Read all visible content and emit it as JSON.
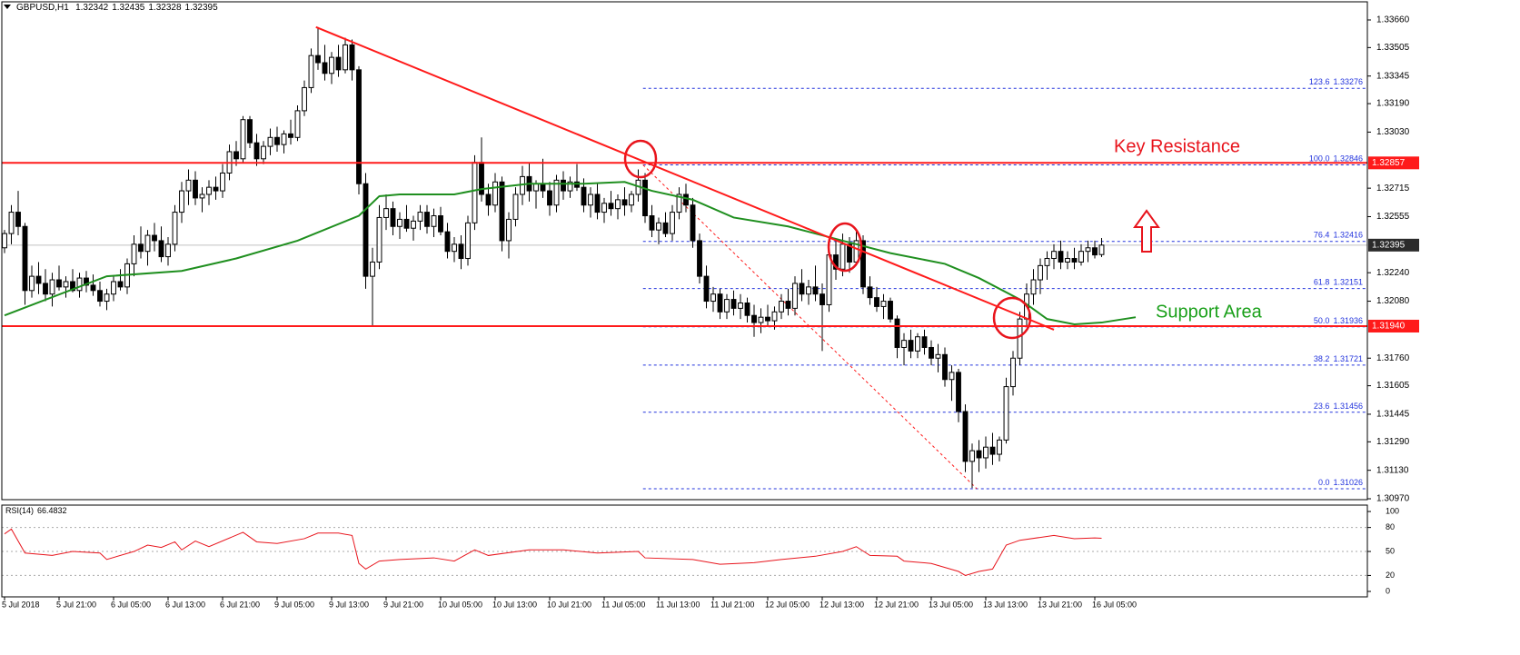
{
  "chart_data": {
    "type": "candlestick",
    "symbol": "GBPUSD,H1",
    "up_color": "#ffffff",
    "down_color": "#000000",
    "ohlc": [
      [
        1.3238,
        1.3248,
        1.3235,
        1.3246
      ],
      [
        1.3246,
        1.3262,
        1.324,
        1.3258
      ],
      [
        1.3258,
        1.327,
        1.3245,
        1.325
      ],
      [
        1.325,
        1.3252,
        1.3206,
        1.3214
      ],
      [
        1.3214,
        1.3228,
        1.321,
        1.3222
      ],
      [
        1.3222,
        1.323,
        1.3212,
        1.3218
      ],
      [
        1.3218,
        1.3226,
        1.3208,
        1.3212
      ],
      [
        1.3212,
        1.3224,
        1.3205,
        1.322
      ],
      [
        1.322,
        1.3228,
        1.3214,
        1.3216
      ],
      [
        1.3216,
        1.3222,
        1.321,
        1.3219
      ],
      [
        1.3219,
        1.3226,
        1.3213,
        1.3214
      ],
      [
        1.3214,
        1.3224,
        1.321,
        1.3221
      ],
      [
        1.3221,
        1.3225,
        1.3213,
        1.3217
      ],
      [
        1.3217,
        1.3223,
        1.3211,
        1.3214
      ],
      [
        1.3214,
        1.3219,
        1.3205,
        1.3208
      ],
      [
        1.3208,
        1.3215,
        1.3203,
        1.3212
      ],
      [
        1.3212,
        1.3222,
        1.3208,
        1.3219
      ],
      [
        1.3219,
        1.3226,
        1.3214,
        1.3216
      ],
      [
        1.3216,
        1.3232,
        1.3212,
        1.3229
      ],
      [
        1.3229,
        1.3245,
        1.3222,
        1.324
      ],
      [
        1.324,
        1.325,
        1.3232,
        1.3236
      ],
      [
        1.3236,
        1.3248,
        1.3228,
        1.3245
      ],
      [
        1.3245,
        1.3252,
        1.3236,
        1.3242
      ],
      [
        1.3242,
        1.325,
        1.323,
        1.3233
      ],
      [
        1.3233,
        1.3244,
        1.3228,
        1.324
      ],
      [
        1.324,
        1.3262,
        1.3236,
        1.3258
      ],
      [
        1.3258,
        1.3275,
        1.3252,
        1.327
      ],
      [
        1.327,
        1.3282,
        1.3262,
        1.3276
      ],
      [
        1.3276,
        1.3281,
        1.3262,
        1.3266
      ],
      [
        1.3266,
        1.3272,
        1.3258,
        1.3268
      ],
      [
        1.3268,
        1.3276,
        1.3262,
        1.3272
      ],
      [
        1.3272,
        1.3278,
        1.3265,
        1.327
      ],
      [
        1.327,
        1.3285,
        1.3266,
        1.328
      ],
      [
        1.328,
        1.3296,
        1.3276,
        1.3292
      ],
      [
        1.3292,
        1.3298,
        1.3284,
        1.3288
      ],
      [
        1.3288,
        1.3312,
        1.3286,
        1.331
      ],
      [
        1.331,
        1.3312,
        1.3294,
        1.3297
      ],
      [
        1.3297,
        1.3302,
        1.3284,
        1.3288
      ],
      [
        1.3288,
        1.3298,
        1.3285,
        1.3295
      ],
      [
        1.3295,
        1.3305,
        1.329,
        1.33
      ],
      [
        1.33,
        1.3306,
        1.3292,
        1.3296
      ],
      [
        1.3296,
        1.3304,
        1.3291,
        1.3302
      ],
      [
        1.3302,
        1.331,
        1.3296,
        1.33
      ],
      [
        1.33,
        1.3318,
        1.3298,
        1.3315
      ],
      [
        1.3315,
        1.3332,
        1.3312,
        1.3328
      ],
      [
        1.3328,
        1.335,
        1.3325,
        1.3346
      ],
      [
        1.3346,
        1.3362,
        1.3338,
        1.3342
      ],
      [
        1.3342,
        1.3352,
        1.3332,
        1.3336
      ],
      [
        1.3336,
        1.3348,
        1.333,
        1.3345
      ],
      [
        1.3345,
        1.3352,
        1.3334,
        1.3338
      ],
      [
        1.3338,
        1.3356,
        1.3336,
        1.3352
      ],
      [
        1.3352,
        1.3355,
        1.3332,
        1.3338
      ],
      [
        1.3338,
        1.334,
        1.3268,
        1.3274
      ],
      [
        1.3274,
        1.328,
        1.3215,
        1.3222
      ],
      [
        1.3222,
        1.3238,
        1.3194,
        1.323
      ],
      [
        1.323,
        1.3262,
        1.3226,
        1.3255
      ],
      [
        1.3255,
        1.3268,
        1.3248,
        1.326
      ],
      [
        1.326,
        1.3264,
        1.3245,
        1.325
      ],
      [
        1.325,
        1.3258,
        1.3243,
        1.3254
      ],
      [
        1.3254,
        1.3262,
        1.3247,
        1.3249
      ],
      [
        1.3249,
        1.3256,
        1.3242,
        1.3253
      ],
      [
        1.3253,
        1.3262,
        1.3248,
        1.3258
      ],
      [
        1.3258,
        1.3262,
        1.3246,
        1.325
      ],
      [
        1.325,
        1.326,
        1.3244,
        1.3256
      ],
      [
        1.3256,
        1.3261,
        1.3245,
        1.3247
      ],
      [
        1.3247,
        1.3252,
        1.3232,
        1.3236
      ],
      [
        1.3236,
        1.3244,
        1.323,
        1.324
      ],
      [
        1.324,
        1.3245,
        1.3226,
        1.3232
      ],
      [
        1.3232,
        1.3256,
        1.3228,
        1.3252
      ],
      [
        1.3252,
        1.329,
        1.3248,
        1.3286
      ],
      [
        1.3286,
        1.33,
        1.3264,
        1.3268
      ],
      [
        1.3268,
        1.3274,
        1.3256,
        1.3262
      ],
      [
        1.3262,
        1.328,
        1.3258,
        1.3275
      ],
      [
        1.3275,
        1.3278,
        1.3236,
        1.3242
      ],
      [
        1.3242,
        1.3258,
        1.3232,
        1.3254
      ],
      [
        1.3254,
        1.3272,
        1.325,
        1.3268
      ],
      [
        1.3268,
        1.3284,
        1.3262,
        1.3278
      ],
      [
        1.3278,
        1.3286,
        1.3264,
        1.327
      ],
      [
        1.327,
        1.3276,
        1.326,
        1.3274
      ],
      [
        1.3274,
        1.3288,
        1.3266,
        1.327
      ],
      [
        1.327,
        1.3275,
        1.3256,
        1.3262
      ],
      [
        1.3262,
        1.3279,
        1.3258,
        1.3276
      ],
      [
        1.3276,
        1.3281,
        1.3265,
        1.327
      ],
      [
        1.327,
        1.3278,
        1.3266,
        1.3275
      ],
      [
        1.3275,
        1.3285,
        1.327,
        1.3272
      ],
      [
        1.3272,
        1.3277,
        1.3258,
        1.3262
      ],
      [
        1.3262,
        1.3272,
        1.3255,
        1.3268
      ],
      [
        1.3268,
        1.3274,
        1.3254,
        1.3258
      ],
      [
        1.3258,
        1.3266,
        1.3252,
        1.3263
      ],
      [
        1.3263,
        1.327,
        1.3256,
        1.326
      ],
      [
        1.326,
        1.3268,
        1.3254,
        1.3265
      ],
      [
        1.3265,
        1.3272,
        1.3256,
        1.3262
      ],
      [
        1.3262,
        1.327,
        1.3258,
        1.3268
      ],
      [
        1.3268,
        1.3282,
        1.3264,
        1.3276
      ],
      [
        1.3276,
        1.328,
        1.3252,
        1.3256
      ],
      [
        1.3256,
        1.3262,
        1.3244,
        1.3248
      ],
      [
        1.3248,
        1.3255,
        1.324,
        1.3252
      ],
      [
        1.3252,
        1.3258,
        1.3244,
        1.3246
      ],
      [
        1.3246,
        1.3262,
        1.3242,
        1.3258
      ],
      [
        1.3258,
        1.3272,
        1.3254,
        1.3268
      ],
      [
        1.3268,
        1.3274,
        1.3258,
        1.3262
      ],
      [
        1.3262,
        1.3266,
        1.3238,
        1.3242
      ],
      [
        1.3242,
        1.3246,
        1.3218,
        1.3222
      ],
      [
        1.3222,
        1.3228,
        1.3204,
        1.3208
      ],
      [
        1.3208,
        1.3216,
        1.3202,
        1.3212
      ],
      [
        1.3212,
        1.3215,
        1.3198,
        1.3202
      ],
      [
        1.3202,
        1.3212,
        1.3198,
        1.3209
      ],
      [
        1.3209,
        1.3214,
        1.32,
        1.3204
      ],
      [
        1.3204,
        1.3212,
        1.3198,
        1.3207
      ],
      [
        1.3207,
        1.321,
        1.3196,
        1.32
      ],
      [
        1.32,
        1.3206,
        1.3188,
        1.3196
      ],
      [
        1.3196,
        1.3204,
        1.319,
        1.3199
      ],
      [
        1.3199,
        1.3206,
        1.3194,
        1.3197
      ],
      [
        1.3197,
        1.3205,
        1.3192,
        1.3202
      ],
      [
        1.3202,
        1.3212,
        1.3198,
        1.3208
      ],
      [
        1.3208,
        1.3215,
        1.32,
        1.3204
      ],
      [
        1.3204,
        1.3222,
        1.32,
        1.3218
      ],
      [
        1.3218,
        1.3226,
        1.3208,
        1.3212
      ],
      [
        1.3212,
        1.322,
        1.3206,
        1.3216
      ],
      [
        1.3216,
        1.3228,
        1.3208,
        1.3212
      ],
      [
        1.3212,
        1.3218,
        1.318,
        1.3206
      ],
      [
        1.3206,
        1.3238,
        1.3202,
        1.3234
      ],
      [
        1.3234,
        1.3242,
        1.322,
        1.3226
      ],
      [
        1.3226,
        1.3246,
        1.3222,
        1.324
      ],
      [
        1.324,
        1.3244,
        1.3224,
        1.323
      ],
      [
        1.323,
        1.3248,
        1.3228,
        1.3242
      ],
      [
        1.3242,
        1.3245,
        1.3212,
        1.3216
      ],
      [
        1.3216,
        1.3222,
        1.3206,
        1.321
      ],
      [
        1.321,
        1.3216,
        1.3202,
        1.3205
      ],
      [
        1.3205,
        1.3212,
        1.3198,
        1.3208
      ],
      [
        1.3208,
        1.321,
        1.3196,
        1.3198
      ],
      [
        1.3198,
        1.32,
        1.3176,
        1.3182
      ],
      [
        1.3182,
        1.319,
        1.3172,
        1.3186
      ],
      [
        1.3186,
        1.3192,
        1.3176,
        1.318
      ],
      [
        1.318,
        1.319,
        1.3176,
        1.3188
      ],
      [
        1.3188,
        1.3192,
        1.3178,
        1.3182
      ],
      [
        1.3182,
        1.3186,
        1.3172,
        1.3176
      ],
      [
        1.3176,
        1.3184,
        1.3168,
        1.3178
      ],
      [
        1.3178,
        1.3182,
        1.316,
        1.3164
      ],
      [
        1.3164,
        1.3172,
        1.3152,
        1.3168
      ],
      [
        1.3168,
        1.317,
        1.314,
        1.3146
      ],
      [
        1.3146,
        1.315,
        1.3112,
        1.3118
      ],
      [
        1.3118,
        1.3128,
        1.3103,
        1.3124
      ],
      [
        1.3124,
        1.313,
        1.3112,
        1.312
      ],
      [
        1.312,
        1.3132,
        1.3114,
        1.3126
      ],
      [
        1.3126,
        1.3134,
        1.3116,
        1.3122
      ],
      [
        1.3122,
        1.3132,
        1.3118,
        1.313
      ],
      [
        1.313,
        1.3165,
        1.3128,
        1.316
      ],
      [
        1.316,
        1.318,
        1.3155,
        1.3176
      ],
      [
        1.3176,
        1.3202,
        1.3172,
        1.3198
      ],
      [
        1.3198,
        1.3218,
        1.3194,
        1.3212
      ],
      [
        1.3212,
        1.3226,
        1.3206,
        1.322
      ],
      [
        1.322,
        1.3232,
        1.3212,
        1.3228
      ],
      [
        1.3228,
        1.3236,
        1.322,
        1.3232
      ],
      [
        1.3232,
        1.324,
        1.3226,
        1.3236
      ],
      [
        1.3236,
        1.3242,
        1.3226,
        1.323
      ],
      [
        1.323,
        1.3236,
        1.3226,
        1.3232
      ],
      [
        1.3232,
        1.3238,
        1.3226,
        1.323
      ],
      [
        1.323,
        1.324,
        1.3228,
        1.3236
      ],
      [
        1.3236,
        1.3242,
        1.323,
        1.3238
      ],
      [
        1.3238,
        1.3242,
        1.3232,
        1.3234
      ],
      [
        1.32342,
        1.32435,
        1.32328,
        1.32395
      ]
    ],
    "xlim": [
      -0.4,
      200
    ],
    "xticks": [
      {
        "value": 0,
        "label": "5 Jul 2018"
      },
      {
        "value": 8,
        "label": "5 Jul 21:00"
      },
      {
        "value": 16,
        "label": "6 Jul 05:00"
      },
      {
        "value": 24,
        "label": "6 Jul 13:00"
      },
      {
        "value": 32,
        "label": "6 Jul 21:00"
      },
      {
        "value": 40,
        "label": "9 Jul 05:00"
      },
      {
        "value": 48,
        "label": "9 Jul 13:00"
      },
      {
        "value": 56,
        "label": "9 Jul 21:00"
      },
      {
        "value": 64,
        "label": "10 Jul 05:00"
      },
      {
        "value": 72,
        "label": "10 Jul 13:00"
      },
      {
        "value": 80,
        "label": "10 Jul 21:00"
      },
      {
        "value": 88,
        "label": "11 Jul 05:00"
      },
      {
        "value": 96,
        "label": "11 Jul 13:00"
      },
      {
        "value": 104,
        "label": "11 Jul 21:00"
      },
      {
        "value": 112,
        "label": "12 Jul 05:00"
      },
      {
        "value": 120,
        "label": "12 Jul 13:00"
      },
      {
        "value": 128,
        "label": "12 Jul 21:00"
      },
      {
        "value": 136,
        "label": "13 Jul 05:00"
      },
      {
        "value": 144,
        "label": "13 Jul 13:00"
      },
      {
        "value": 152,
        "label": "13 Jul 21:00"
      },
      {
        "value": 160,
        "label": "16 Jul 05:00"
      }
    ],
    "ylim": [
      1.30965,
      1.33762
    ],
    "yticks": [
      {
        "value": 1.3366,
        "label": "1.33660"
      },
      1.33505,
      1.33345,
      {
        "value": 1.3319,
        "label": "1.33190"
      },
      {
        "value": 1.3303,
        "label": "1.33030"
      },
      1.32715,
      1.32555,
      {
        "value": 1.3224,
        "label": "1.32240"
      },
      {
        "value": 1.3208,
        "label": "1.32080"
      },
      {
        "value": 1.3176,
        "label": "1.31760"
      },
      1.31605,
      1.31445,
      {
        "value": 1.3129,
        "label": "1.31290"
      },
      {
        "value": 1.3113,
        "label": "1.31130"
      },
      {
        "value": 1.3097,
        "label": "1.30970"
      }
    ],
    "current_price_color": "#c0c0c0",
    "hlines": [
      {
        "price": 1.32857,
        "color": "#ff1a1a"
      },
      {
        "price": {
          "value": 1.3194,
          "label": "1.31940"
        },
        "color": "#ff1a1a"
      }
    ],
    "trendline": {
      "x": [
        45.7,
        154
      ],
      "y": [
        1.3362,
        1.3192
      ],
      "color": "#ff1a1a"
    },
    "moving_average": {
      "color": "#1f8f1f",
      "x": [
        0,
        15,
        26,
        34,
        43,
        52,
        55,
        58,
        66,
        70,
        77,
        85,
        91,
        95,
        101,
        107,
        115,
        123,
        130,
        138,
        143,
        149,
        153,
        157,
        161,
        166
      ],
      "values": [
        1.32,
        1.3222,
        1.3225,
        1.3232,
        1.3242,
        1.3256,
        1.3267,
        1.3268,
        1.3268,
        1.3271,
        1.3274,
        1.3274,
        1.3275,
        1.327,
        1.3265,
        1.3255,
        1.325,
        1.3242,
        1.3235,
        1.3229,
        1.3221,
        1.3209,
        1.3198,
        1.3195,
        1.3196,
        1.3199
      ]
    },
    "fibonacci": {
      "color": "#2233dd",
      "anchor_color": "#ff1a1a",
      "x": [
        93.7,
        142.7
      ],
      "levels": [
        {
          "level": "123.6",
          "price": 1.33276
        },
        {
          "level": "100.0",
          "price": 1.32846
        },
        {
          "level": "76.4",
          "price": 1.32416
        },
        {
          "level": "61.8",
          "price": 1.32151
        },
        {
          "level": "50.0",
          "price": 1.31936
        },
        {
          "level": "38.2",
          "price": 1.31721
        },
        {
          "level": "23.6",
          "price": 1.31456
        },
        {
          "level": "0.0",
          "price": 1.31026
        }
      ]
    },
    "annotations": [
      {
        "text": "Key Resistance",
        "color": "#e8141c"
      },
      {
        "text": "Support Area",
        "color": "#1aa01a"
      }
    ],
    "rsi": {
      "name": "RSI(14)",
      "color": "#e8141c",
      "ylim": [
        -6.8,
        108
      ],
      "yticks": [
        0,
        20,
        50,
        80,
        100
      ],
      "x": [
        0,
        1,
        3,
        7,
        10,
        14,
        15,
        19,
        21,
        23,
        25,
        26,
        28,
        30,
        35,
        37,
        40,
        44,
        46,
        49,
        51,
        52,
        53,
        55,
        58,
        63,
        66,
        69,
        71,
        77,
        82,
        87,
        93,
        94,
        101,
        105,
        110,
        114,
        119,
        123,
        125,
        127,
        131,
        132,
        136,
        140,
        141,
        143,
        145,
        147,
        149,
        154,
        157,
        160,
        161
      ],
      "values": [
        72,
        78,
        48,
        45,
        50,
        48,
        40,
        50,
        58,
        55,
        62,
        52,
        63,
        56,
        74,
        62,
        60,
        66,
        73,
        73,
        70,
        35,
        28,
        38,
        40,
        42,
        38,
        52,
        45,
        52,
        52,
        48,
        50,
        42,
        40,
        34,
        36,
        40,
        44,
        50,
        56,
        45,
        44,
        38,
        35,
        25,
        20,
        25,
        28,
        58,
        64,
        70,
        66,
        67,
        66.4832
      ]
    }
  }
}
